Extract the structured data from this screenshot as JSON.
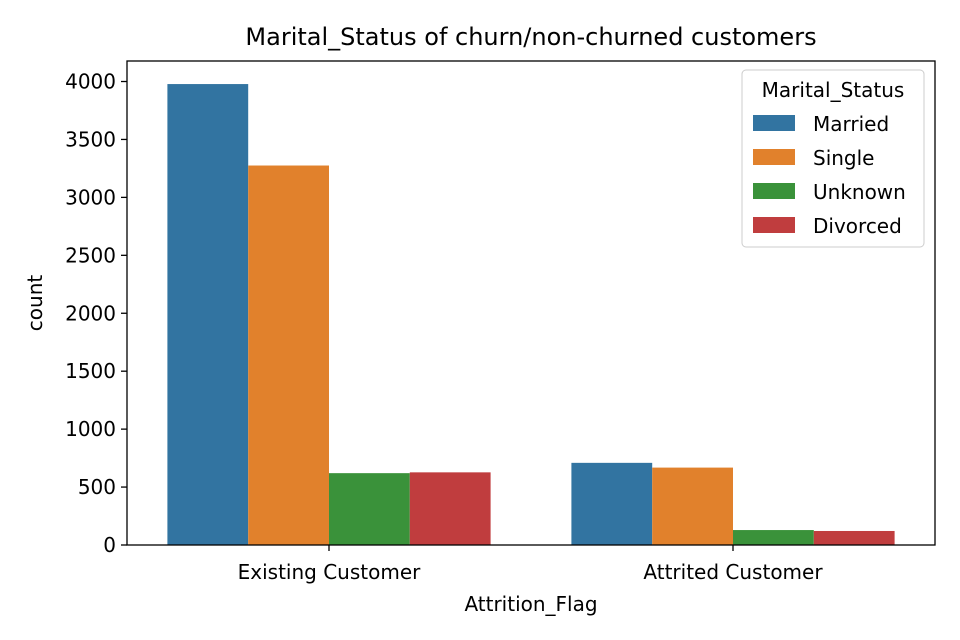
{
  "chart_data": {
    "type": "bar",
    "title": "Marital_Status of churn/non-churned customers",
    "xlabel": "Attrition_Flag",
    "ylabel": "count",
    "categories": [
      "Existing Customer",
      "Attrited Customer"
    ],
    "series": [
      {
        "name": "Married",
        "color": "#3274a1",
        "values": [
          3978,
          709
        ]
      },
      {
        "name": "Single",
        "color": "#e1812c",
        "values": [
          3275,
          668
        ]
      },
      {
        "name": "Unknown",
        "color": "#3a923a",
        "values": [
          620,
          129
        ]
      },
      {
        "name": "Divorced",
        "color": "#c03d3e",
        "values": [
          627,
          121
        ]
      }
    ],
    "ylim": [
      0,
      4177
    ],
    "yticks": [
      0,
      500,
      1000,
      1500,
      2000,
      2500,
      3000,
      3500,
      4000
    ],
    "grid": false,
    "legend": {
      "title": "Marital_Status",
      "placement": "top-right"
    }
  }
}
